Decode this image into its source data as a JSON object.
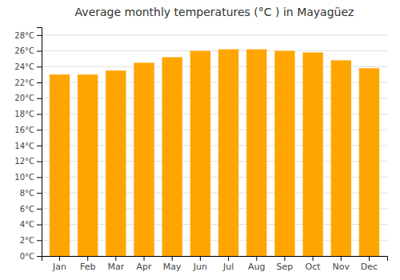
{
  "chart_data": {
    "type": "bar",
    "title": "Average monthly temperatures (°C ) in Mayagüez",
    "categories": [
      "Jan",
      "Feb",
      "Mar",
      "Apr",
      "May",
      "Jun",
      "Jul",
      "Aug",
      "Sep",
      "Oct",
      "Nov",
      "Dec"
    ],
    "values": [
      23.0,
      23.0,
      23.5,
      24.5,
      25.2,
      26.0,
      26.2,
      26.2,
      26.0,
      25.8,
      24.8,
      23.8
    ],
    "color": "#FFA500",
    "ylim": [
      0,
      29
    ],
    "yticks": [
      {
        "value": 0,
        "label": "0°C"
      },
      {
        "value": 2,
        "label": "2°C"
      },
      {
        "value": 4,
        "label": "4°C"
      },
      {
        "value": 6,
        "label": "6°C"
      },
      {
        "value": 8,
        "label": "8°C"
      },
      {
        "value": 10,
        "label": "10°C"
      },
      {
        "value": 12,
        "label": "12°C"
      },
      {
        "value": 14,
        "label": "14°C"
      },
      {
        "value": 16,
        "label": "16°C"
      },
      {
        "value": 18,
        "label": "18°C"
      },
      {
        "value": 20,
        "label": "20°C"
      },
      {
        "value": 22,
        "label": "22°C"
      },
      {
        "value": 24,
        "label": "24°C"
      },
      {
        "value": 26,
        "label": "26°C"
      },
      {
        "value": 28,
        "label": "28°C"
      }
    ],
    "grid": true
  }
}
